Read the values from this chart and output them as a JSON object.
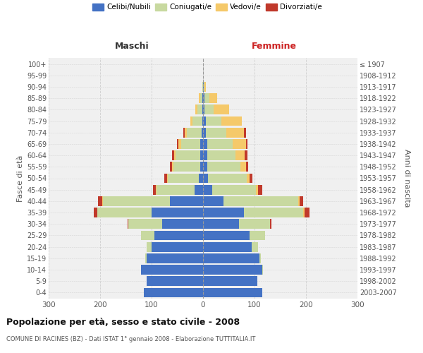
{
  "age_groups": [
    "0-4",
    "5-9",
    "10-14",
    "15-19",
    "20-24",
    "25-29",
    "30-34",
    "35-39",
    "40-44",
    "45-49",
    "50-54",
    "55-59",
    "60-64",
    "65-69",
    "70-74",
    "75-79",
    "80-84",
    "85-89",
    "90-94",
    "95-99",
    "100+"
  ],
  "birth_years": [
    "2003-2007",
    "1998-2002",
    "1993-1997",
    "1988-1992",
    "1983-1987",
    "1978-1982",
    "1973-1977",
    "1968-1972",
    "1963-1967",
    "1958-1962",
    "1953-1957",
    "1948-1952",
    "1943-1947",
    "1938-1942",
    "1933-1937",
    "1928-1932",
    "1923-1927",
    "1918-1922",
    "1913-1917",
    "1908-1912",
    "≤ 1907"
  ],
  "male": {
    "celibi": [
      115,
      110,
      120,
      110,
      100,
      95,
      80,
      100,
      65,
      16,
      8,
      6,
      5,
      5,
      3,
      2,
      1,
      1,
      0,
      0,
      0
    ],
    "coniugati": [
      0,
      0,
      1,
      2,
      10,
      25,
      65,
      105,
      130,
      75,
      60,
      52,
      48,
      38,
      28,
      18,
      10,
      5,
      1,
      0,
      0
    ],
    "vedovi": [
      0,
      0,
      0,
      0,
      0,
      0,
      0,
      0,
      1,
      1,
      2,
      2,
      3,
      5,
      5,
      5,
      4,
      2,
      0,
      0,
      0
    ],
    "divorziati": [
      0,
      0,
      0,
      0,
      0,
      1,
      2,
      8,
      8,
      5,
      5,
      5,
      4,
      3,
      3,
      0,
      0,
      0,
      0,
      0,
      0
    ]
  },
  "female": {
    "nubili": [
      115,
      105,
      115,
      110,
      95,
      90,
      70,
      80,
      40,
      18,
      10,
      8,
      8,
      8,
      5,
      5,
      3,
      3,
      1,
      0,
      0
    ],
    "coniugate": [
      0,
      0,
      1,
      3,
      12,
      30,
      60,
      115,
      145,
      85,
      75,
      65,
      55,
      50,
      40,
      30,
      18,
      10,
      2,
      0,
      0
    ],
    "vedove": [
      0,
      0,
      0,
      0,
      0,
      0,
      0,
      2,
      2,
      4,
      6,
      10,
      18,
      25,
      35,
      40,
      30,
      15,
      3,
      0,
      0
    ],
    "divorziate": [
      0,
      0,
      0,
      0,
      0,
      1,
      3,
      10,
      8,
      8,
      5,
      5,
      5,
      3,
      3,
      0,
      0,
      0,
      0,
      0,
      0
    ]
  },
  "colors": {
    "celibi": "#4472c4",
    "coniugati": "#c8d9a0",
    "vedovi": "#f5c96a",
    "divorziati": "#c0392b"
  },
  "xlim": 300,
  "title": "Popolazione per età, sesso e stato civile - 2008",
  "subtitle": "COMUNE DI RACINES (BZ) - Dati ISTAT 1° gennaio 2008 - Elaborazione TUTTITALIA.IT",
  "ylabel": "Fasce di età",
  "ylabel_right": "Anni di nascita",
  "xlabel_left": "Maschi",
  "xlabel_right": "Femmine",
  "bg_color": "#f0f0f0",
  "grid_color": "#cccccc"
}
